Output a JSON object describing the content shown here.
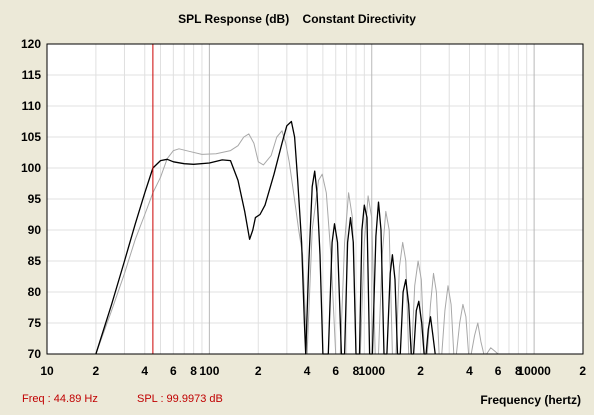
{
  "chart_data": {
    "type": "line",
    "title": "SPL Response (dB)    Constant Directivity",
    "xlabel": "Frequency (hertz)",
    "ylabel": "",
    "xscale": "log",
    "xlim": [
      10,
      20000
    ],
    "ylim": [
      70,
      120
    ],
    "yticks": [
      120,
      115,
      110,
      105,
      100,
      95,
      90,
      85,
      80,
      75,
      70
    ],
    "xtick_labels": [
      {
        "x": 10,
        "label": "10"
      },
      {
        "x": 20,
        "label": "2"
      },
      {
        "x": 40,
        "label": "4"
      },
      {
        "x": 60,
        "label": "6"
      },
      {
        "x": 80,
        "label": "8"
      },
      {
        "x": 100,
        "label": "100"
      },
      {
        "x": 200,
        "label": "2"
      },
      {
        "x": 400,
        "label": "4"
      },
      {
        "x": 600,
        "label": "6"
      },
      {
        "x": 800,
        "label": "8"
      },
      {
        "x": 1000,
        "label": "1000"
      },
      {
        "x": 2000,
        "label": "2"
      },
      {
        "x": 4000,
        "label": "4"
      },
      {
        "x": 6000,
        "label": "6"
      },
      {
        "x": 8000,
        "label": "8"
      },
      {
        "x": 10000,
        "label": "10000"
      },
      {
        "x": 20000,
        "label": "2"
      }
    ],
    "grid": true,
    "cursor": {
      "x": 44.89
    },
    "series": [
      {
        "color": "#000000",
        "points": [
          [
            20,
            70
          ],
          [
            25,
            78
          ],
          [
            30,
            85
          ],
          [
            35,
            91
          ],
          [
            40,
            96
          ],
          [
            44.89,
            100
          ],
          [
            50,
            101.2
          ],
          [
            55,
            101.4
          ],
          [
            60,
            101.0
          ],
          [
            70,
            100.7
          ],
          [
            80,
            100.6
          ],
          [
            100,
            100.8
          ],
          [
            120,
            101.3
          ],
          [
            135,
            101.2
          ],
          [
            150,
            98
          ],
          [
            165,
            93
          ],
          [
            177,
            88.5
          ],
          [
            185,
            90
          ],
          [
            192,
            92
          ],
          [
            205,
            92.5
          ],
          [
            220,
            94
          ],
          [
            250,
            99
          ],
          [
            280,
            104
          ],
          [
            300,
            106.8
          ],
          [
            320,
            107.5
          ],
          [
            335,
            105
          ],
          [
            350,
            98
          ],
          [
            370,
            88
          ],
          [
            385,
            75
          ],
          [
            392,
            70
          ],
          [
            410,
            85
          ],
          [
            430,
            97
          ],
          [
            445,
            99.5
          ],
          [
            460,
            96
          ],
          [
            480,
            86
          ],
          [
            500,
            70
          ],
          [
            540,
            70
          ],
          [
            570,
            88
          ],
          [
            590,
            91
          ],
          [
            615,
            88
          ],
          [
            650,
            70
          ],
          [
            680,
            70
          ],
          [
            710,
            88
          ],
          [
            740,
            92
          ],
          [
            770,
            88
          ],
          [
            800,
            70
          ],
          [
            840,
            70
          ],
          [
            870,
            90
          ],
          [
            900,
            94
          ],
          [
            935,
            92
          ],
          [
            970,
            70
          ],
          [
            1010,
            70
          ],
          [
            1060,
            89
          ],
          [
            1100,
            94.5
          ],
          [
            1140,
            90
          ],
          [
            1190,
            70
          ],
          [
            1240,
            70
          ],
          [
            1300,
            83
          ],
          [
            1340,
            86
          ],
          [
            1390,
            82
          ],
          [
            1440,
            70
          ],
          [
            1500,
            70
          ],
          [
            1560,
            80
          ],
          [
            1620,
            82
          ],
          [
            1690,
            78
          ],
          [
            1750,
            70
          ],
          [
            1810,
            70
          ],
          [
            1880,
            77
          ],
          [
            1950,
            78.5
          ],
          [
            2030,
            75
          ],
          [
            2100,
            70
          ],
          [
            2160,
            70
          ],
          [
            2230,
            74
          ],
          [
            2300,
            76
          ],
          [
            2380,
            73
          ],
          [
            2460,
            70
          ]
        ]
      },
      {
        "color": "#a8a8a8",
        "points": [
          [
            20,
            70
          ],
          [
            25,
            77
          ],
          [
            30,
            83
          ],
          [
            35,
            88.5
          ],
          [
            40,
            92.5
          ],
          [
            44.89,
            96
          ],
          [
            50,
            98.5
          ],
          [
            55,
            101.5
          ],
          [
            60,
            102.8
          ],
          [
            65,
            103.1
          ],
          [
            75,
            102.7
          ],
          [
            90,
            102.2
          ],
          [
            110,
            102.3
          ],
          [
            135,
            102.8
          ],
          [
            150,
            103.6
          ],
          [
            163,
            105
          ],
          [
            175,
            105.5
          ],
          [
            188,
            104
          ],
          [
            200,
            101
          ],
          [
            215,
            100.5
          ],
          [
            240,
            102
          ],
          [
            260,
            105
          ],
          [
            280,
            106
          ],
          [
            295,
            104
          ],
          [
            310,
            101
          ],
          [
            330,
            96
          ],
          [
            355,
            90
          ],
          [
            375,
            86
          ],
          [
            400,
            70
          ],
          [
            430,
            90
          ],
          [
            470,
            98
          ],
          [
            495,
            99
          ],
          [
            525,
            96
          ],
          [
            560,
            86
          ],
          [
            600,
            70
          ],
          [
            640,
            70
          ],
          [
            680,
            88
          ],
          [
            720,
            96
          ],
          [
            760,
            92
          ],
          [
            800,
            70
          ],
          [
            850,
            70
          ],
          [
            900,
            88
          ],
          [
            950,
            95.5
          ],
          [
            1000,
            92
          ],
          [
            1050,
            70
          ],
          [
            1100,
            70
          ],
          [
            1160,
            86
          ],
          [
            1220,
            93
          ],
          [
            1280,
            90
          ],
          [
            1340,
            70
          ],
          [
            1410,
            70
          ],
          [
            1480,
            84
          ],
          [
            1550,
            88
          ],
          [
            1620,
            85
          ],
          [
            1690,
            70
          ],
          [
            1760,
            70
          ],
          [
            1840,
            81
          ],
          [
            1930,
            85
          ],
          [
            2020,
            82
          ],
          [
            2110,
            70
          ],
          [
            2200,
            70
          ],
          [
            2300,
            78
          ],
          [
            2400,
            83
          ],
          [
            2500,
            80
          ],
          [
            2600,
            70
          ],
          [
            2700,
            70
          ],
          [
            2820,
            77
          ],
          [
            2950,
            81
          ],
          [
            3080,
            78
          ],
          [
            3200,
            70
          ],
          [
            3320,
            70
          ],
          [
            3480,
            75
          ],
          [
            3640,
            78
          ],
          [
            3800,
            76
          ],
          [
            3950,
            70
          ],
          [
            4100,
            70
          ],
          [
            4300,
            73
          ],
          [
            4500,
            75
          ],
          [
            4700,
            72
          ],
          [
            4900,
            70
          ],
          [
            5100,
            70
          ],
          [
            5400,
            71
          ],
          [
            5700,
            70.5
          ],
          [
            6000,
            70
          ]
        ]
      }
    ]
  },
  "title": "SPL Response (dB)    Constant Directivity",
  "status": {
    "freq": "Freq : 44.89 Hz",
    "spl": "SPL : 99.9973 dB"
  },
  "colors": {
    "background": "#ece9d8",
    "plot_background": "#ffffff",
    "cursor": "#cc0000",
    "status_text": "#c00000",
    "grid": "#e0e0e0",
    "grid_major": "#b8b8b8"
  }
}
